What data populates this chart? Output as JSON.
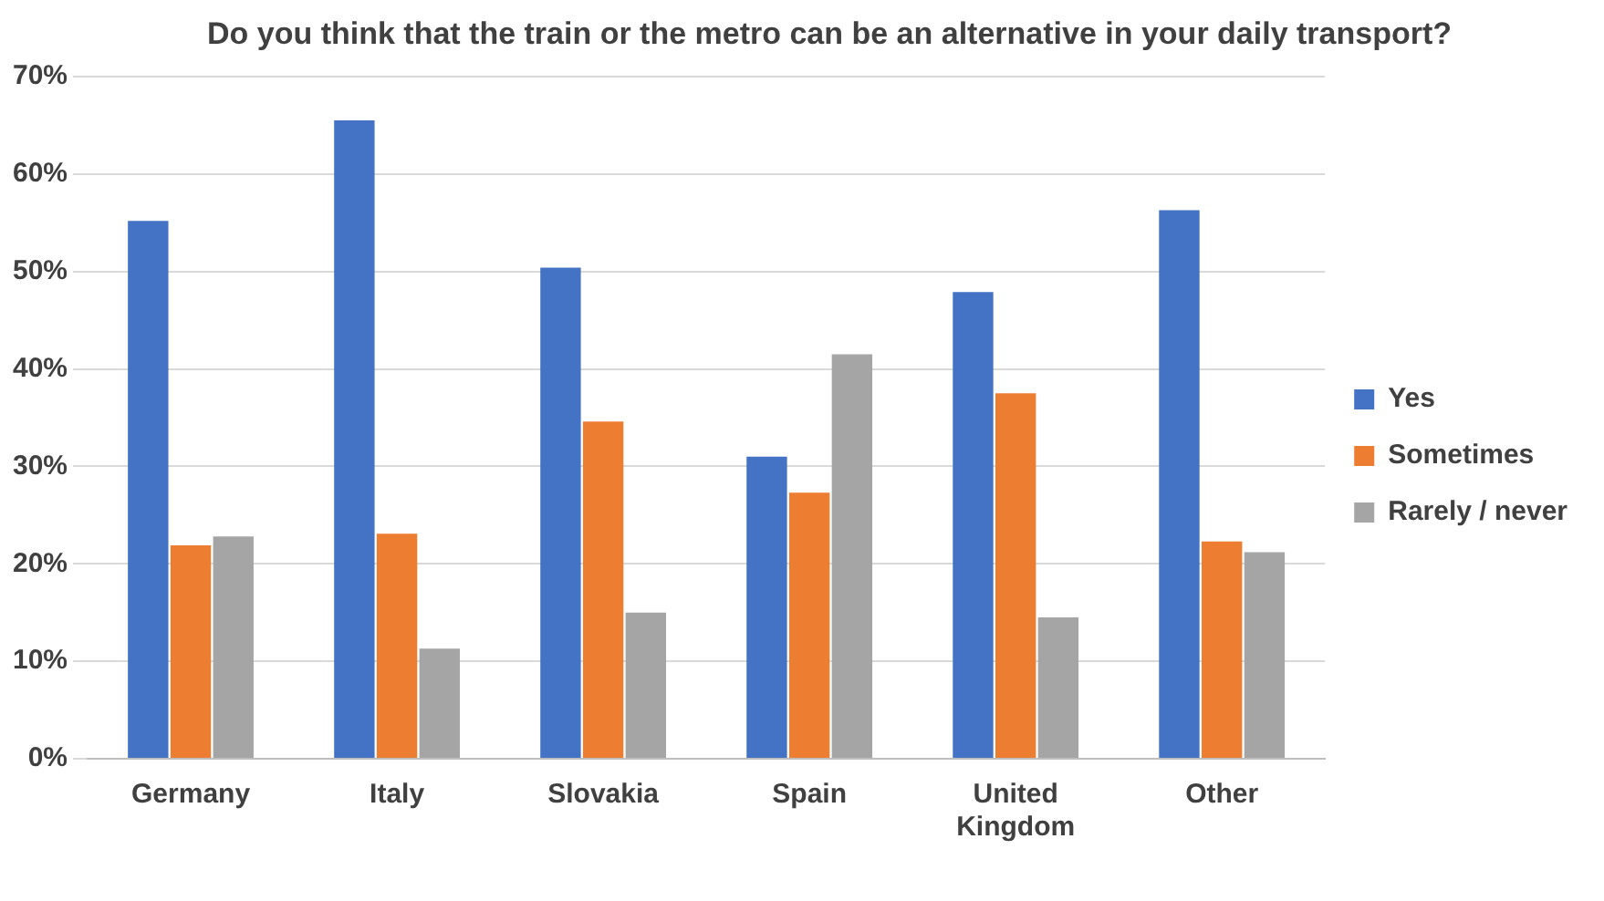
{
  "chart_data": {
    "type": "bar",
    "title": "Do you think that the train or the metro can be an alternative in your daily transport?",
    "categories": [
      "Germany",
      "Italy",
      "Slovakia",
      "Spain",
      "United Kingdom",
      "Other"
    ],
    "series": [
      {
        "name": "Yes",
        "color": "#4472c4",
        "values": [
          55.2,
          65.5,
          50.4,
          31,
          47.9,
          56.3
        ]
      },
      {
        "name": "Sometimes",
        "color": "#ed7d31",
        "values": [
          21.9,
          23.1,
          34.6,
          27.3,
          37.5,
          22.3
        ]
      },
      {
        "name": "Rarely / never",
        "color": "#a5a5a5",
        "values": [
          22.8,
          11.3,
          15,
          41.5,
          14.5,
          21.2
        ]
      }
    ],
    "ylim": [
      0,
      70
    ],
    "yticks": [
      {
        "value": 0,
        "label": "0%"
      },
      {
        "value": 10,
        "label": "10%"
      },
      {
        "value": 20,
        "label": "20%"
      },
      {
        "value": 30,
        "label": "30%"
      },
      {
        "value": 40,
        "label": "40%"
      },
      {
        "value": 50,
        "label": "50%"
      },
      {
        "value": 60,
        "label": "60%"
      },
      {
        "value": 70,
        "label": "70%"
      }
    ],
    "grid": "y",
    "legend": "right"
  }
}
